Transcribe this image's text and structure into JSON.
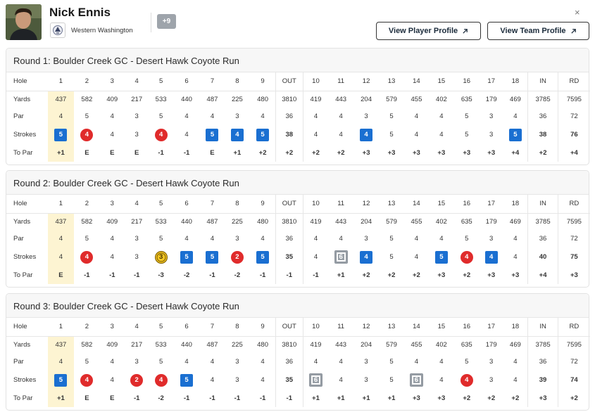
{
  "player": {
    "name": "Nick Ennis",
    "school": "Western Washington",
    "more_badge": "+9"
  },
  "buttons": {
    "view_player_profile": "View Player Profile",
    "view_team_profile": "View Team Profile",
    "close": "×"
  },
  "icons": {
    "avatar": "player-photo",
    "school_logo": "school-logo-icon",
    "external": "arrow-up-right-icon",
    "close": "close-icon"
  },
  "colors": {
    "birdie": "#e02b2b",
    "bogey": "#1a6fd1",
    "eagle": "#f3c623",
    "double_bogey": "#9aa1a8",
    "under_par_text": "#d42a2a",
    "over_par_text": "#1e6fc2",
    "hole1_highlight": "#fdf4d2"
  },
  "labels": {
    "hole": "Hole",
    "yards": "Yards",
    "par": "Par",
    "strokes": "Strokes",
    "to_par": "To Par"
  },
  "columns": [
    "1",
    "2",
    "3",
    "4",
    "5",
    "6",
    "7",
    "8",
    "9",
    "OUT",
    "10",
    "11",
    "12",
    "13",
    "14",
    "15",
    "16",
    "17",
    "18",
    "IN",
    "RD"
  ],
  "yards": [
    "437",
    "582",
    "409",
    "217",
    "533",
    "440",
    "487",
    "225",
    "480",
    "3810",
    "419",
    "443",
    "204",
    "579",
    "455",
    "402",
    "635",
    "179",
    "469",
    "3785",
    "7595"
  ],
  "par": [
    "4",
    "5",
    "4",
    "3",
    "5",
    "4",
    "4",
    "3",
    "4",
    "36",
    "4",
    "4",
    "3",
    "5",
    "4",
    "4",
    "5",
    "3",
    "4",
    "36",
    "72"
  ],
  "rounds": [
    {
      "title": "Round 1: Boulder Creek GC - Desert Hawk Coyote Run",
      "strokes": [
        "5",
        "4",
        "4",
        "3",
        "4",
        "4",
        "5",
        "4",
        "5",
        "38",
        "4",
        "4",
        "4",
        "5",
        "4",
        "4",
        "5",
        "3",
        "5",
        "38",
        "76"
      ],
      "marks": [
        "bogey",
        "birdie",
        "",
        "",
        "birdie",
        "",
        "bogey",
        "bogey",
        "bogey",
        "blue",
        "",
        "",
        "bogey",
        "",
        "",
        "",
        "",
        "",
        "bogey",
        "blue",
        "blue"
      ],
      "to_par": [
        "+1",
        "E",
        "E",
        "E",
        "-1",
        "-1",
        "E",
        "+1",
        "+2",
        "+2",
        "+2",
        "+2",
        "+3",
        "+3",
        "+3",
        "+3",
        "+3",
        "+3",
        "+4",
        "+2",
        "+4"
      ]
    },
    {
      "title": "Round 2: Boulder Creek GC - Desert Hawk Coyote Run",
      "strokes": [
        "4",
        "4",
        "4",
        "3",
        "3",
        "5",
        "5",
        "2",
        "5",
        "35",
        "4",
        "6",
        "4",
        "5",
        "4",
        "5",
        "4",
        "4",
        "4",
        "40",
        "75"
      ],
      "marks": [
        "",
        "birdie",
        "",
        "",
        "eagle",
        "bogey",
        "bogey",
        "birdie",
        "bogey",
        "red",
        "",
        "dbogey",
        "bogey",
        "",
        "",
        "bogey",
        "birdie",
        "bogey",
        "",
        "blue",
        "blue"
      ],
      "to_par": [
        "E",
        "-1",
        "-1",
        "-1",
        "-3",
        "-2",
        "-1",
        "-2",
        "-1",
        "-1",
        "-1",
        "+1",
        "+2",
        "+2",
        "+2",
        "+3",
        "+2",
        "+3",
        "+3",
        "+4",
        "+3"
      ]
    },
    {
      "title": "Round 3: Boulder Creek GC - Desert Hawk Coyote Run",
      "strokes": [
        "5",
        "4",
        "4",
        "2",
        "4",
        "5",
        "4",
        "3",
        "4",
        "35",
        "6",
        "4",
        "3",
        "5",
        "6",
        "4",
        "4",
        "3",
        "4",
        "39",
        "74"
      ],
      "marks": [
        "bogey",
        "birdie",
        "",
        "birdie",
        "birdie",
        "bogey",
        "",
        "",
        "",
        "red",
        "dbogey",
        "",
        "",
        "",
        "dbogey",
        "",
        "birdie",
        "",
        "",
        "blue",
        "blue"
      ],
      "to_par": [
        "+1",
        "E",
        "E",
        "-1",
        "-2",
        "-1",
        "-1",
        "-1",
        "-1",
        "-1",
        "+1",
        "+1",
        "+1",
        "+1",
        "+3",
        "+3",
        "+2",
        "+2",
        "+2",
        "+3",
        "+2"
      ]
    }
  ]
}
